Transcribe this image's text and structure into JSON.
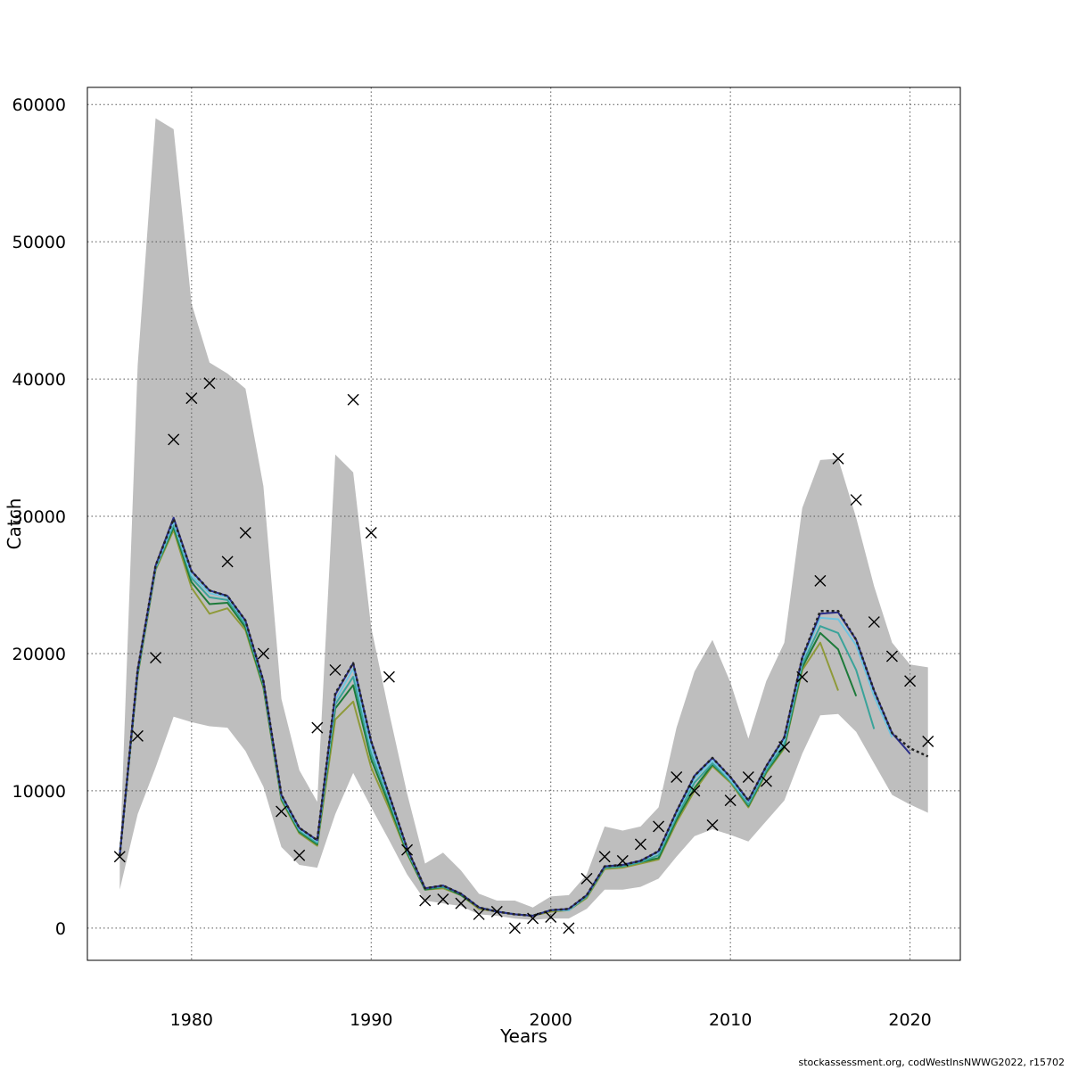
{
  "chart_data": {
    "type": "line",
    "xlabel": "Years",
    "ylabel": "Catch",
    "xlim": [
      1974.2,
      2022.8
    ],
    "ylim": [
      -2350,
      61250
    ],
    "x_ticks": [
      1980,
      1990,
      2000,
      2010,
      2020
    ],
    "x_tick_labels": [
      "1980",
      "1990",
      "2000",
      "2010",
      "2020"
    ],
    "y_ticks": [
      0,
      10000,
      20000,
      30000,
      40000,
      50000,
      60000
    ],
    "y_tick_labels": [
      "0",
      "10000",
      "20000",
      "30000",
      "40000",
      "50000",
      "60000"
    ],
    "grid": true,
    "band_color": "#bebebe",
    "confidence_band": {
      "x": [
        1976,
        1977,
        1978,
        1979,
        1980,
        1981,
        1982,
        1983,
        1984,
        1985,
        1986,
        1987,
        1988,
        1989,
        1990,
        1991,
        1992,
        1993,
        1994,
        1995,
        1996,
        1997,
        1998,
        1999,
        2000,
        2001,
        2002,
        2003,
        2004,
        2005,
        2006,
        2007,
        2008,
        2009,
        2010,
        2011,
        2012,
        2013,
        2014,
        2015,
        2016,
        2017,
        2018,
        2019,
        2020,
        2021
      ],
      "upper": [
        5000,
        41000,
        59000,
        58200,
        45500,
        41200,
        40400,
        39300,
        32200,
        16700,
        11500,
        9200,
        34500,
        33200,
        21900,
        15700,
        9800,
        4700,
        5500,
        4200,
        2500,
        2000,
        2000,
        1500,
        2300,
        2400,
        3900,
        7400,
        7100,
        7400,
        8800,
        14600,
        18700,
        21000,
        17900,
        13800,
        18000,
        20800,
        30600,
        34100,
        34200,
        29900,
        24900,
        20800,
        19200,
        19000
      ],
      "lower": [
        2800,
        8300,
        11700,
        15400,
        15000,
        14700,
        14600,
        12900,
        10300,
        5900,
        4600,
        4400,
        8300,
        11300,
        8800,
        6400,
        3900,
        2000,
        1800,
        1600,
        1000,
        900,
        700,
        600,
        700,
        700,
        1400,
        2800,
        2800,
        3000,
        3600,
        5200,
        6700,
        7200,
        6800,
        6300,
        7800,
        9300,
        12700,
        15500,
        15600,
        14300,
        12000,
        9700,
        9000,
        8400
      ]
    },
    "series": [
      {
        "color": "#222222",
        "dashed": true,
        "x": [
          1976,
          1977,
          1978,
          1979,
          1980,
          1981,
          1982,
          1983,
          1984,
          1985,
          1986,
          1987,
          1988,
          1989,
          1990,
          1991,
          1992,
          1993,
          1994,
          1995,
          1996,
          1997,
          1998,
          1999,
          2000,
          2001,
          2002,
          2003,
          2004,
          2005,
          2006,
          2007,
          2008,
          2009,
          2010,
          2011,
          2012,
          2013,
          2014,
          2015,
          2016,
          2017,
          2018,
          2019,
          2020,
          2021
        ],
        "values": [
          5300,
          18800,
          26400,
          29800,
          26000,
          24600,
          24200,
          22400,
          18000,
          9700,
          7300,
          6400,
          17100,
          19300,
          13600,
          9700,
          5800,
          2900,
          3100,
          2500,
          1500,
          1200,
          1000,
          900,
          1300,
          1400,
          2400,
          4500,
          4600,
          4900,
          5600,
          8500,
          11100,
          12400,
          11000,
          9300,
          11800,
          13900,
          19700,
          23100,
          23100,
          21000,
          17300,
          14200,
          13100,
          12500
        ]
      },
      {
        "color": "#2b2f8a",
        "x": [
          1976,
          1977,
          1978,
          1979,
          1980,
          1981,
          1982,
          1983,
          1984,
          1985,
          1986,
          1987,
          1988,
          1989,
          1990,
          1991,
          1992,
          1993,
          1994,
          1995,
          1996,
          1997,
          1998,
          1999,
          2000,
          2001,
          2002,
          2003,
          2004,
          2005,
          2006,
          2007,
          2008,
          2009,
          2010,
          2011,
          2012,
          2013,
          2014,
          2015,
          2016,
          2017,
          2018,
          2019,
          2020
        ],
        "values": [
          5300,
          18800,
          26400,
          29900,
          26000,
          24600,
          24200,
          22400,
          18000,
          9700,
          7300,
          6400,
          17000,
          19300,
          13600,
          9700,
          5800,
          2900,
          3100,
          2500,
          1500,
          1200,
          1000,
          900,
          1300,
          1400,
          2400,
          4500,
          4600,
          4900,
          5600,
          8500,
          11100,
          12400,
          11000,
          9300,
          11800,
          13900,
          19700,
          22900,
          23000,
          21000,
          17300,
          14200,
          12700
        ]
      },
      {
        "color": "#6fc4e0",
        "x": [
          1976,
          1977,
          1978,
          1979,
          1980,
          1981,
          1982,
          1983,
          1984,
          1985,
          1986,
          1987,
          1988,
          1989,
          1990,
          1991,
          1992,
          1993,
          1994,
          1995,
          1996,
          1997,
          1998,
          1999,
          2000,
          2001,
          2002,
          2003,
          2004,
          2005,
          2006,
          2007,
          2008,
          2009,
          2010,
          2011,
          2012,
          2013,
          2014,
          2015,
          2016,
          2017,
          2018,
          2019
        ],
        "values": [
          5300,
          18700,
          26300,
          29600,
          25700,
          24400,
          24100,
          22300,
          17900,
          9600,
          7200,
          6300,
          16600,
          18900,
          13100,
          9500,
          5700,
          2900,
          3100,
          2500,
          1500,
          1200,
          1000,
          900,
          1300,
          1300,
          2400,
          4500,
          4600,
          4900,
          5500,
          8300,
          10900,
          12200,
          10800,
          9200,
          11700,
          13700,
          19500,
          22600,
          22500,
          20600,
          16900,
          13900
        ]
      },
      {
        "color": "#3aa39a",
        "x": [
          1976,
          1977,
          1978,
          1979,
          1980,
          1981,
          1982,
          1983,
          1984,
          1985,
          1986,
          1987,
          1988,
          1989,
          1990,
          1991,
          1992,
          1993,
          1994,
          1995,
          1996,
          1997,
          1998,
          1999,
          2000,
          2001,
          2002,
          2003,
          2004,
          2005,
          2006,
          2007,
          2008,
          2009,
          2010,
          2011,
          2012,
          2013,
          2014,
          2015,
          2016,
          2017,
          2018
        ],
        "values": [
          5300,
          18600,
          26200,
          29400,
          25500,
          24100,
          23900,
          22100,
          17800,
          9500,
          7100,
          6200,
          16300,
          18300,
          12700,
          9300,
          5600,
          2900,
          3000,
          2500,
          1500,
          1200,
          1000,
          900,
          1300,
          1300,
          2300,
          4400,
          4500,
          4800,
          5300,
          8100,
          10600,
          12000,
          10700,
          9000,
          11500,
          13400,
          19200,
          22000,
          21500,
          18800,
          14500
        ]
      },
      {
        "color": "#1d7a3a",
        "x": [
          1976,
          1977,
          1978,
          1979,
          1980,
          1981,
          1982,
          1983,
          1984,
          1985,
          1986,
          1987,
          1988,
          1989,
          1990,
          1991,
          1992,
          1993,
          1994,
          1995,
          1996,
          1997,
          1998,
          1999,
          2000,
          2001,
          2002,
          2003,
          2004,
          2005,
          2006,
          2007,
          2008,
          2009,
          2010,
          2011,
          2012,
          2013,
          2014,
          2015,
          2016,
          2017
        ],
        "values": [
          5300,
          18500,
          26200,
          29200,
          25200,
          23600,
          23700,
          21900,
          17600,
          9400,
          7000,
          6100,
          16000,
          17700,
          12300,
          9000,
          5500,
          2800,
          3000,
          2400,
          1500,
          1200,
          1000,
          900,
          1300,
          1300,
          2300,
          4400,
          4500,
          4800,
          5100,
          7900,
          10200,
          11900,
          10700,
          8900,
          11400,
          13200,
          19000,
          21500,
          20300,
          16900
        ]
      },
      {
        "color": "#8f9a3a",
        "x": [
          1976,
          1977,
          1978,
          1979,
          1980,
          1981,
          1982,
          1983,
          1984,
          1985,
          1986,
          1987,
          1988,
          1989,
          1990,
          1991,
          1992,
          1993,
          1994,
          1995,
          1996,
          1997,
          1998,
          1999,
          2000,
          2001,
          2002,
          2003,
          2004,
          2005,
          2006,
          2007,
          2008,
          2009,
          2010,
          2011,
          2012,
          2013,
          2014,
          2015,
          2016
        ],
        "values": [
          5300,
          18400,
          26100,
          29000,
          24800,
          22900,
          23300,
          21700,
          17500,
          9300,
          6900,
          6000,
          15200,
          16500,
          11700,
          8700,
          5400,
          2800,
          2900,
          2400,
          1400,
          1200,
          1000,
          900,
          1200,
          1300,
          2200,
          4300,
          4400,
          4700,
          5000,
          7700,
          10000,
          11800,
          10600,
          8800,
          11300,
          13100,
          18800,
          20800,
          17300
        ]
      }
    ],
    "observed": {
      "marker": "x",
      "x": [
        1976,
        1977,
        1978,
        1979,
        1980,
        1981,
        1982,
        1983,
        1984,
        1985,
        1986,
        1987,
        1988,
        1989,
        1990,
        1991,
        1992,
        1993,
        1994,
        1995,
        1996,
        1997,
        1998,
        1999,
        2000,
        2001,
        2002,
        2003,
        2004,
        2005,
        2006,
        2007,
        2008,
        2009,
        2010,
        2011,
        2012,
        2013,
        2014,
        2015,
        2016,
        2017,
        2018,
        2019,
        2020,
        2021
      ],
      "values": [
        5200,
        14000,
        19700,
        35600,
        38600,
        39700,
        26700,
        28800,
        20000,
        8500,
        5300,
        14600,
        18800,
        38500,
        28800,
        18300,
        5700,
        2000,
        2100,
        1800,
        1000,
        1200,
        0,
        700,
        800,
        0,
        3600,
        5200,
        4900,
        6100,
        7400,
        11000,
        10000,
        7500,
        9300,
        11000,
        10700,
        13200,
        18300,
        25300,
        34200,
        31200,
        22300,
        19800,
        18000,
        13600
      ]
    }
  },
  "footer": {
    "credit": "stockassessment.org, codWestInsNWWG2022, r15702"
  }
}
